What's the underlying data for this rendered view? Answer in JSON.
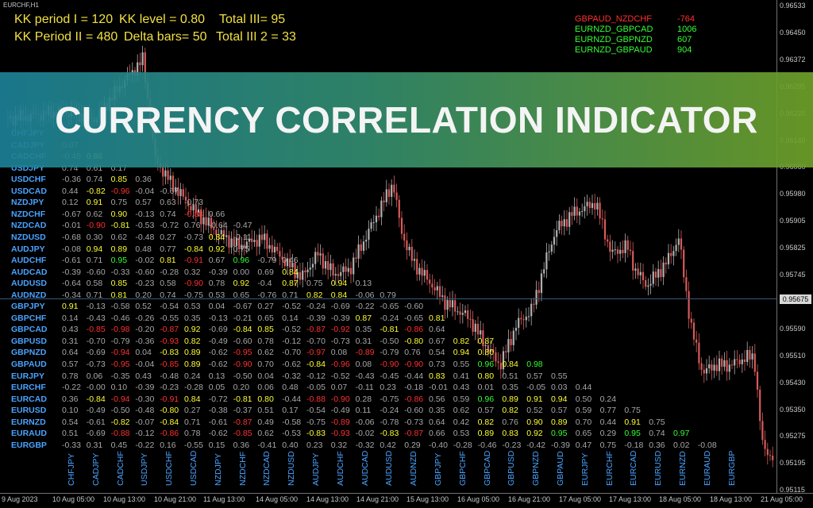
{
  "window_title": "EURCHF,H1",
  "header": {
    "line1": [
      "KK period I = 120",
      "KK level = 0.80",
      "Total III= 95"
    ],
    "line2": [
      "KK Period II = 480",
      "Delta bars= 50",
      "Total III 2 = 33"
    ]
  },
  "top_pairs": [
    {
      "name": "GBPAUD_NZDCHF",
      "value": "-764",
      "color": "#ff3030"
    },
    {
      "name": "EURNZD_GBPCAD",
      "value": "1006",
      "color": "#33ff33"
    },
    {
      "name": "EURNZD_GBPNZD",
      "value": "607",
      "color": "#33ff33"
    },
    {
      "name": "EURNZD_GBPAUD",
      "value": "904",
      "color": "#33ff33"
    }
  ],
  "banner": {
    "title": "CURRENCY CORRELATION INDICATOR"
  },
  "colors": {
    "positive_strong": "#33ff33",
    "positive": "#ffff33",
    "negative": "#ff3030",
    "neutral": "#a8a8a8",
    "label": "#4aa3ff"
  },
  "matrix": {
    "rows": [
      "CHFJPY",
      "CADJPY",
      "CADCHF",
      "USDJPY",
      "USDCHF",
      "USDCAD",
      "NZDJPY",
      "NZDCHF",
      "NZDCAD",
      "NZDUSD",
      "AUDJPY",
      "AUDCHF",
      "AUDCAD",
      "AUDUSD",
      "AUDNZD",
      "GBPJPY",
      "GBPCHF",
      "GBPCAD",
      "GBPUSD",
      "GBPNZD",
      "GBPAUD",
      "EURJPY",
      "EURCHF",
      "EURCAD",
      "EURUSD",
      "EURNZD",
      "EURAUD",
      "EURGBP"
    ],
    "columns": [
      "CHFJPY",
      "CADJPY",
      "CADCHF",
      "USDJPY",
      "USDCHF",
      "USDCAD",
      "NZDJPY",
      "NZDCHF",
      "NZDCAD",
      "NZDUSD",
      "AUDJPY",
      "AUDCHF",
      "AUDCAD",
      "AUDUSD",
      "AUDNZD",
      "GBPJPY",
      "GBPCHF",
      "GBPCAD",
      "GBPUSD",
      "GBPNZD",
      "GBPAUD",
      "EURJPY",
      "EURCHF",
      "EURCAD",
      "EURUSD",
      "EURNZD",
      "EURAUD",
      "EURGBP"
    ],
    "cells": [
      [],
      [
        "0.07"
      ],
      [
        "-0.45",
        "0.86"
      ],
      [
        "0.74",
        "0.61",
        "0.17"
      ],
      [
        "-0.36",
        "0.74",
        "0.85",
        "0.36"
      ],
      [
        "0.44",
        "-0.82",
        "-0.96",
        "-0.04",
        "-0.67"
      ],
      [
        "0.12",
        "0.91",
        "0.75",
        "0.57",
        "0.63",
        "-0.73"
      ],
      [
        "-0.67",
        "0.62",
        "0.90",
        "-0.13",
        "0.74",
        "-0.88",
        "0.66"
      ],
      [
        "-0.01",
        "-0.90",
        "-0.81",
        "-0.53",
        "-0.72",
        "0.76",
        "-0.64",
        "-0.47"
      ],
      [
        "-0.68",
        "0.30",
        "0.62",
        "-0.48",
        "0.27",
        "-0.73",
        "0.84",
        "-0.11"
      ],
      [
        "-0.08",
        "0.94",
        "0.89",
        "0.48",
        "0.77",
        "-0.84",
        "0.92",
        "0.75"
      ],
      [
        "-0.61",
        "0.71",
        "0.95",
        "-0.02",
        "0.81",
        "-0.91",
        "0.67",
        "0.96",
        "-0.79",
        "0.46"
      ],
      [
        "-0.39",
        "-0.60",
        "-0.33",
        "-0.60",
        "-0.28",
        "0.32",
        "-0.39",
        "0.00",
        "0.69",
        "0.84"
      ],
      [
        "-0.64",
        "0.58",
        "0.85",
        "-0.23",
        "0.58",
        "-0.90",
        "0.78",
        "0.92",
        "-0.4",
        "0.87",
        "0.75",
        "0.94",
        "0.13"
      ],
      [
        "-0.34",
        "0.71",
        "0.81",
        "0.20",
        "0.74",
        "-0.75",
        "0.53",
        "0.65",
        "-0.76",
        "0.71",
        "0.82",
        "0.84",
        "-0.06",
        "0.79"
      ],
      [
        "0.91",
        "-0.13",
        "-0.58",
        "0.52",
        "-0.54",
        "0.53",
        "0.04",
        "-0.67",
        "0.27",
        "-0.52",
        "-0.24",
        "-0.69",
        "-0.22",
        "-0.65",
        "-0.60"
      ],
      [
        "0.14",
        "-0.43",
        "-0.46",
        "-0.26",
        "-0.55",
        "0.35",
        "-0.13",
        "-0.21",
        "0.65",
        "0.14",
        "-0.39",
        "-0.39",
        "0.87",
        "-0.24",
        "-0.65",
        "0.81"
      ],
      [
        "0.43",
        "-0.85",
        "-0.98",
        "-0.20",
        "-0.87",
        "0.92",
        "-0.69",
        "-0.84",
        "0.85",
        "-0.52",
        "-0.87",
        "-0.92",
        "0.35",
        "-0.81",
        "-0.86",
        "0.64"
      ],
      [
        "0.31",
        "-0.70",
        "-0.79",
        "-0.36",
        "-0.93",
        "0.82",
        "-0.49",
        "-0.60",
        "0.78",
        "-0.12",
        "-0.70",
        "-0.73",
        "0.31",
        "-0.50",
        "-0.80",
        "0.67",
        "0.82",
        "0.87"
      ],
      [
        "0.64",
        "-0.69",
        "-0.94",
        "0.04",
        "-0.83",
        "0.89",
        "-0.62",
        "-0.95",
        "0.62",
        "-0.70",
        "-0.97",
        "0.08",
        "-0.89",
        "-0.79",
        "0.76",
        "0.54",
        "0.94",
        "0.80"
      ],
      [
        "0.57",
        "-0.73",
        "-0.95",
        "-0.04",
        "-0.85",
        "0.89",
        "-0.62",
        "-0.90",
        "0.70",
        "-0.62",
        "-0.84",
        "-0.96",
        "0.08",
        "-0.90",
        "-0.90",
        "0.73",
        "0.55",
        "0.96",
        "0.84",
        "0.98"
      ],
      [
        "0.78",
        "0.06",
        "-0.35",
        "0.43",
        "-0.48",
        "0.24",
        "0.13",
        "-0.50",
        "0.04",
        "-0.32",
        "-0.12",
        "-0.52",
        "-0.43",
        "-0.45",
        "-0.44",
        "0.83",
        "0.41",
        "0.80",
        "0.51",
        "0.57",
        "0.55"
      ],
      [
        "-0.22",
        "-0.00",
        "0.10",
        "-0.39",
        "-0.23",
        "-0.28",
        "0.05",
        "0.20",
        "0.06",
        "0.48",
        "-0.05",
        "0.07",
        "-0.11",
        "0.23",
        "-0.18",
        "-0.01",
        "0.43",
        "0.01",
        "0.35",
        "-0.05",
        "0.03",
        "0.44"
      ],
      [
        "0.36",
        "-0.84",
        "-0.94",
        "-0.30",
        "-0.91",
        "0.84",
        "-0.72",
        "-0.81",
        "0.80",
        "-0.44",
        "-0.88",
        "-0.90",
        "0.28",
        "-0.75",
        "-0.86",
        "0.56",
        "0.59",
        "0.96",
        "0.89",
        "0.91",
        "0.94",
        "0.50",
        "0.24"
      ],
      [
        "0.10",
        "-0.49",
        "-0.50",
        "-0.48",
        "-0.80",
        "0.27",
        "-0.38",
        "-0.37",
        "0.51",
        "0.17",
        "-0.54",
        "-0.49",
        "0.11",
        "-0.24",
        "-0.60",
        "0.35",
        "0.62",
        "0.57",
        "0.82",
        "0.52",
        "0.57",
        "0.59",
        "0.77",
        "0.75"
      ],
      [
        "0.54",
        "-0.61",
        "-0.82",
        "-0.07",
        "-0.84",
        "0.71",
        "-0.61",
        "-0.87",
        "0.49",
        "-0.58",
        "-0.75",
        "-0.89",
        "-0.06",
        "-0.78",
        "-0.73",
        "0.64",
        "0.42",
        "0.82",
        "0.76",
        "0.90",
        "0.89",
        "0.70",
        "0.44",
        "0.91",
        "0.75"
      ],
      [
        "0.51",
        "-0.69",
        "-0.88",
        "-0.12",
        "-0.86",
        "0.78",
        "-0.62",
        "-0.85",
        "0.62",
        "-0.53",
        "-0.83",
        "-0.93",
        "-0.02",
        "-0.83",
        "-0.87",
        "0.66",
        "0.53",
        "0.89",
        "0.83",
        "0.92",
        "0.95",
        "0.65",
        "0.29",
        "0.95",
        "0.74",
        "0.97"
      ],
      [
        "-0.33",
        "0.31",
        "0.45",
        "-0.22",
        "0.16",
        "-0.55",
        "0.15",
        "0.36",
        "-0.41",
        "0.40",
        "0.23",
        "0.32",
        "-0.32",
        "0.42",
        "0.29",
        "-0.40",
        "-0.28",
        "-0.46",
        "-0.23",
        "-0.42",
        "-0.39",
        "0.47",
        "0.75",
        "-0.18",
        "0.36",
        "0.02",
        "-0.08"
      ]
    ]
  },
  "price_axis": {
    "labels": [
      "0.96533",
      "0.96450",
      "0.96372",
      "0.96295",
      "0.96220",
      "0.96140",
      "0.96060",
      "0.95980",
      "0.95905",
      "0.95825",
      "0.95745",
      "0.95675",
      "0.95590",
      "0.95510",
      "0.95430",
      "0.95350",
      "0.95275",
      "0.95195",
      "0.95115"
    ],
    "current": "0.95675"
  },
  "time_axis": {
    "labels": [
      "9 Aug 2023",
      "10 Aug 05:00",
      "10 Aug 13:00",
      "10 Aug 21:00",
      "11 Aug 13:00",
      "14 Aug 05:00",
      "14 Aug 13:00",
      "14 Aug 21:00",
      "15 Aug 13:00",
      "16 Aug 05:00",
      "16 Aug 21:00",
      "17 Aug 05:00",
      "17 Aug 13:00",
      "18 Aug 05:00",
      "18 Aug 13:00",
      "21 Aug 05:00",
      "21 Aug 13:00",
      "22 Aug 05:00",
      "22 Aug 13:00",
      "22 Aug 21:00",
      "23 Aug 13:00"
    ]
  }
}
